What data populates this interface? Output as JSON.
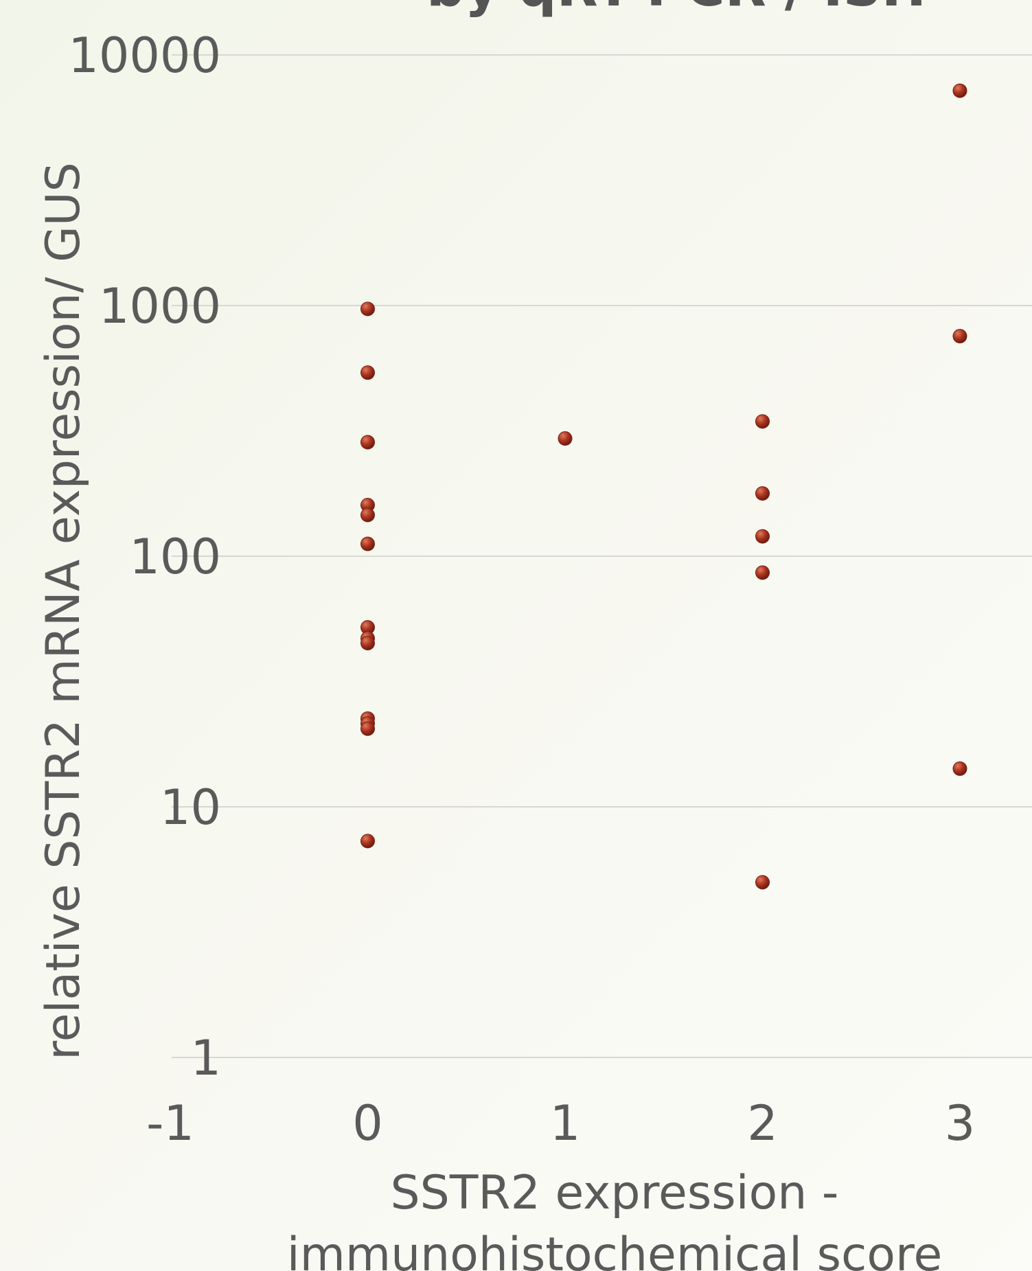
{
  "chart_data": {
    "type": "scatter",
    "title": "by qRT-PCR / ISH",
    "xlabel_lines": [
      "SSTR2 expression -",
      "immunohistochemical score"
    ],
    "ylabel": "relative SSTR2 mRNA expression/ GUS",
    "xlim": [
      -1,
      3
    ],
    "ylim": [
      1,
      10000
    ],
    "y_scale": "log",
    "x_ticks": [
      "-1",
      "0",
      "1",
      "2",
      "3"
    ],
    "y_ticks": [
      "1",
      "10",
      "100",
      "1000",
      "10000"
    ],
    "grid": "horizontal",
    "legend": "none",
    "marker_color": "#a8321f",
    "points": [
      {
        "x": 0,
        "y": 970
      },
      {
        "x": 0,
        "y": 540
      },
      {
        "x": 0,
        "y": 285
      },
      {
        "x": 0,
        "y": 160
      },
      {
        "x": 0,
        "y": 146
      },
      {
        "x": 0,
        "y": 112
      },
      {
        "x": 0,
        "y": 52
      },
      {
        "x": 0,
        "y": 47
      },
      {
        "x": 0,
        "y": 45
      },
      {
        "x": 0,
        "y": 22.5
      },
      {
        "x": 0,
        "y": 21.5
      },
      {
        "x": 0,
        "y": 20.5
      },
      {
        "x": 0,
        "y": 7.3
      },
      {
        "x": 1,
        "y": 295
      },
      {
        "x": 2,
        "y": 345
      },
      {
        "x": 2,
        "y": 178
      },
      {
        "x": 2,
        "y": 120
      },
      {
        "x": 2,
        "y": 86
      },
      {
        "x": 2,
        "y": 5
      },
      {
        "x": 3,
        "y": 7200
      },
      {
        "x": 3,
        "y": 755
      },
      {
        "x": 3,
        "y": 14.2
      }
    ]
  }
}
